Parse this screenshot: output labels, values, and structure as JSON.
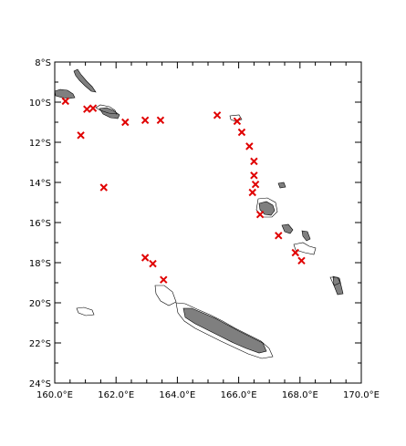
{
  "map": {
    "projection": "lat-lon",
    "lon_range": [
      160,
      170
    ],
    "lat_range": [
      -24,
      -8
    ],
    "marker_color": "#e00000",
    "land_color": "#7f7f7f",
    "x_ticks": [
      {
        "lon": 160,
        "label": "160.0°E"
      },
      {
        "lon": 162,
        "label": "162.0°E"
      },
      {
        "lon": 164,
        "label": "164.0°E"
      },
      {
        "lon": 166,
        "label": "166.0°E"
      },
      {
        "lon": 168,
        "label": "168.0°E"
      },
      {
        "lon": 170,
        "label": "170.0°E"
      }
    ],
    "y_ticks": [
      {
        "lat": -8,
        "label": "8°S"
      },
      {
        "lat": -10,
        "label": "10°S"
      },
      {
        "lat": -12,
        "label": "12°S"
      },
      {
        "lat": -14,
        "label": "14°S"
      },
      {
        "lat": -16,
        "label": "16°S"
      },
      {
        "lat": -18,
        "label": "18°S"
      },
      {
        "lat": -20,
        "label": "20°S"
      },
      {
        "lat": -22,
        "label": "22°S"
      },
      {
        "lat": -24,
        "label": "24°S"
      }
    ],
    "markers": [
      {
        "lon": 160.35,
        "lat": -9.95
      },
      {
        "lon": 161.05,
        "lat": -10.35
      },
      {
        "lon": 161.25,
        "lat": -10.3
      },
      {
        "lon": 160.85,
        "lat": -11.65
      },
      {
        "lon": 162.3,
        "lat": -11.0
      },
      {
        "lon": 162.95,
        "lat": -10.9
      },
      {
        "lon": 163.45,
        "lat": -10.9
      },
      {
        "lon": 165.3,
        "lat": -10.65
      },
      {
        "lon": 165.95,
        "lat": -10.95
      },
      {
        "lon": 166.1,
        "lat": -11.5
      },
      {
        "lon": 166.35,
        "lat": -12.2
      },
      {
        "lon": 166.5,
        "lat": -12.95
      },
      {
        "lon": 166.5,
        "lat": -13.65
      },
      {
        "lon": 166.55,
        "lat": -14.1
      },
      {
        "lon": 166.45,
        "lat": -14.5
      },
      {
        "lon": 166.7,
        "lat": -15.6
      },
      {
        "lon": 167.3,
        "lat": -16.65
      },
      {
        "lon": 167.85,
        "lat": -17.5
      },
      {
        "lon": 168.05,
        "lat": -17.9
      },
      {
        "lon": 161.6,
        "lat": -14.25
      },
      {
        "lon": 162.95,
        "lat": -17.75
      },
      {
        "lon": 163.2,
        "lat": -18.05
      },
      {
        "lon": 163.55,
        "lat": -18.85
      }
    ]
  }
}
